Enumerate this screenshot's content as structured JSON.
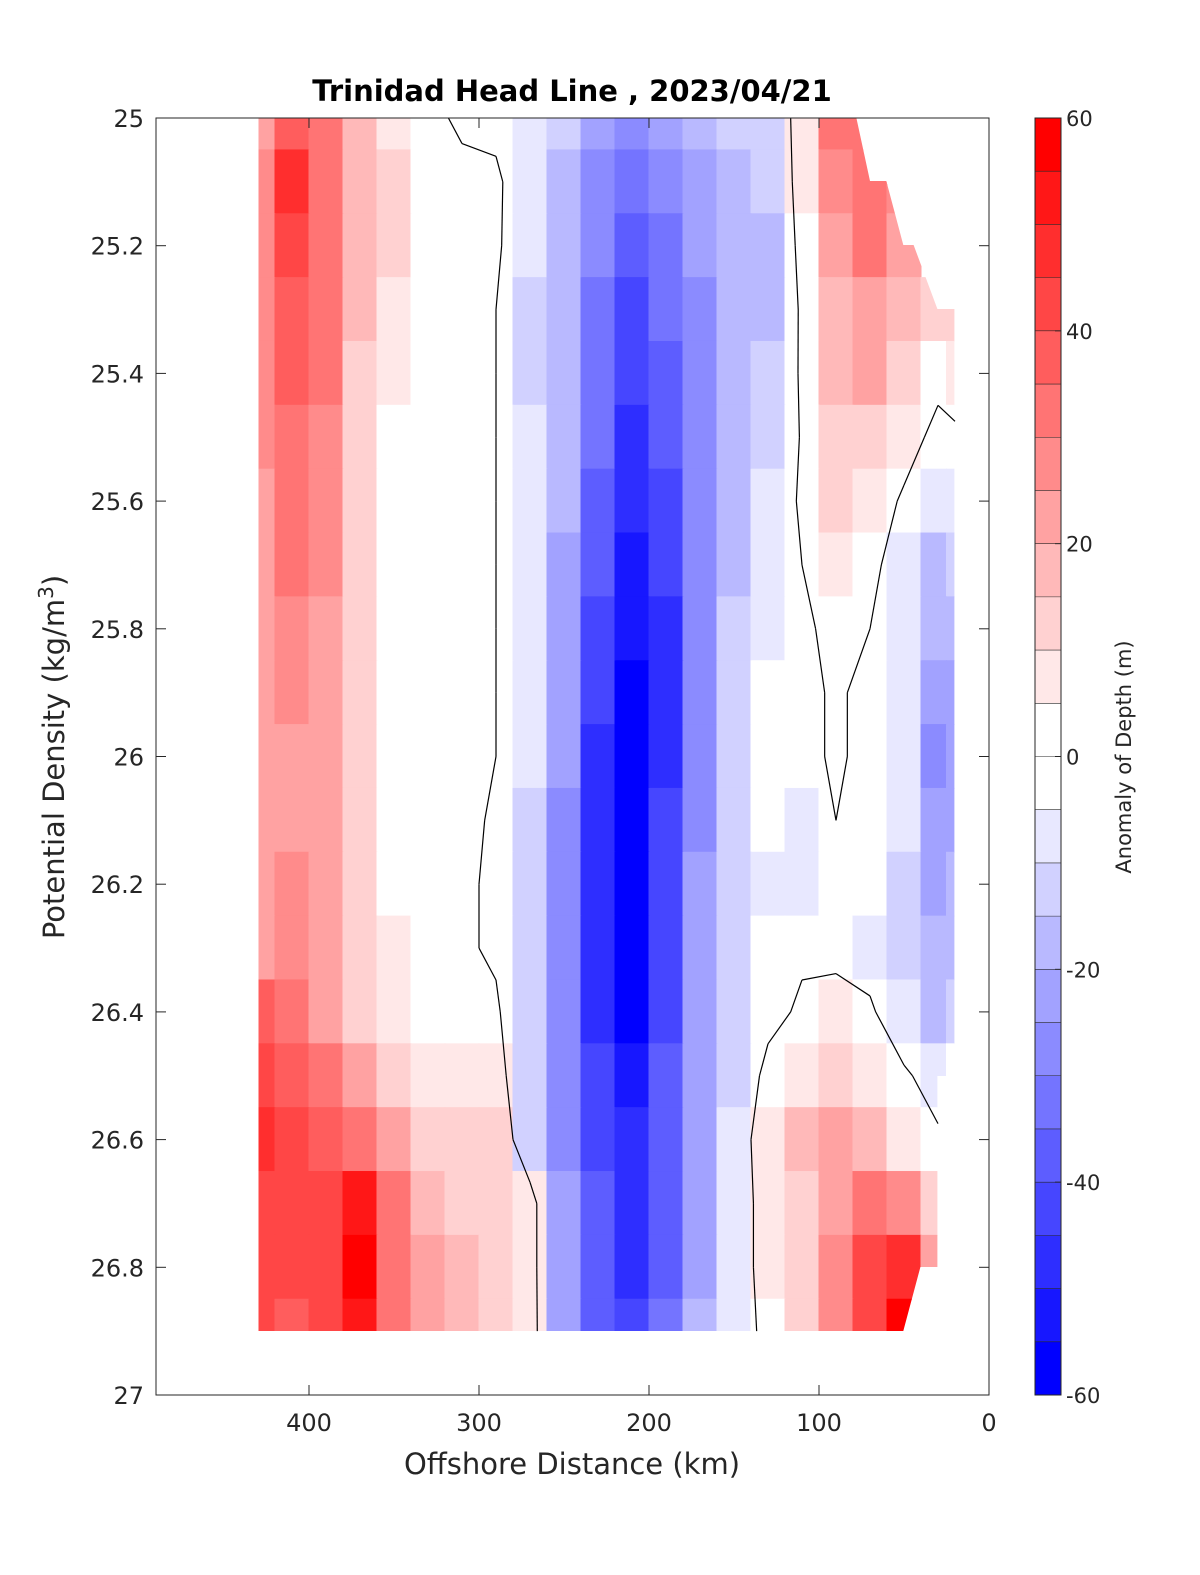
{
  "chart_data": {
    "type": "heatmap",
    "subtype": "filled-contour",
    "title": "Trinidad Head Line , 2023/04/21",
    "xlabel": "Offshore Distance (km)",
    "ylabel_main": "Potential Density (kg/m",
    "ylabel_sup": "3",
    "ylabel_end": ")",
    "xlim": [
      490,
      0
    ],
    "x_reversed": true,
    "ylim": [
      25,
      27
    ],
    "y_reversed": true,
    "xticks": [
      400,
      300,
      200,
      100,
      0
    ],
    "xtick_labels": [
      "400",
      "300",
      "200",
      "100",
      "0"
    ],
    "yticks": [
      25,
      25.2,
      25.4,
      25.6,
      25.8,
      26,
      26.2,
      26.4,
      26.6,
      26.8,
      27
    ],
    "ytick_labels": [
      "25",
      "25.2",
      "25.4",
      "25.6",
      "25.8",
      "26",
      "26.2",
      "26.4",
      "26.6",
      "26.8",
      "27"
    ],
    "grid": false,
    "colorbar": {
      "label": "Anomaly of Depth (m)",
      "range": [
        -60,
        60
      ],
      "ticks": [
        60,
        40,
        20,
        0,
        -20,
        -40,
        -60
      ],
      "tick_labels": [
        "60",
        "40",
        "20",
        "0",
        "-20",
        "-40",
        "-60"
      ],
      "levels": [
        -60,
        -55,
        -50,
        -45,
        -40,
        -35,
        -30,
        -25,
        -20,
        -15,
        -10,
        -5,
        0,
        5,
        10,
        15,
        20,
        25,
        30,
        35,
        40,
        45,
        50,
        55,
        60
      ],
      "min_color": "#0000ff",
      "mid_color": "#ffffff",
      "max_color": "#ff0000"
    },
    "zero_contour_color": "#000000",
    "data_extent": {
      "x": [
        430,
        20
      ],
      "y": [
        25,
        26.9
      ]
    },
    "grid_x": [
      430,
      410,
      390,
      370,
      350,
      330,
      310,
      290,
      270,
      250,
      230,
      210,
      190,
      170,
      150,
      130,
      110,
      90,
      70,
      50,
      30,
      20
    ],
    "grid_y": [
      25.0,
      25.1,
      25.2,
      25.3,
      25.4,
      25.5,
      25.6,
      25.7,
      25.8,
      25.9,
      26.0,
      26.1,
      26.2,
      26.3,
      26.4,
      26.5,
      26.6,
      26.7,
      26.8,
      26.9
    ],
    "anomaly_m": [
      [
        22,
        38,
        30,
        15,
        8,
        3,
        -2,
        -3,
        -8,
        -14,
        -22,
        -28,
        -25,
        -18,
        -14,
        -12,
        6,
        30,
        34,
        null,
        null,
        null
      ],
      [
        28,
        45,
        30,
        15,
        10,
        4,
        3,
        2,
        -8,
        -16,
        -28,
        -35,
        -30,
        -22,
        -18,
        -15,
        6,
        28,
        30,
        28,
        null,
        null
      ],
      [
        28,
        42,
        30,
        16,
        10,
        4,
        3,
        2,
        -10,
        -18,
        -30,
        -40,
        -32,
        -25,
        -18,
        -16,
        4,
        22,
        30,
        22,
        null,
        null
      ],
      [
        28,
        38,
        32,
        16,
        8,
        3,
        3,
        0,
        -12,
        -18,
        -32,
        -42,
        -35,
        -26,
        -20,
        -16,
        2,
        18,
        24,
        18,
        12,
        10
      ],
      [
        26,
        36,
        30,
        14,
        6,
        3,
        2,
        0,
        -12,
        -20,
        -35,
        -44,
        -38,
        -28,
        -20,
        -15,
        2,
        18,
        20,
        12,
        4,
        6
      ],
      [
        26,
        34,
        28,
        12,
        4,
        3,
        2,
        0,
        -10,
        -20,
        -35,
        -46,
        -40,
        -28,
        -18,
        -12,
        1,
        14,
        14,
        6,
        -4,
        -2
      ],
      [
        24,
        32,
        26,
        12,
        4,
        3,
        2,
        0,
        -10,
        -20,
        -38,
        -48,
        -42,
        -30,
        -18,
        -10,
        2,
        10,
        8,
        -2,
        -10,
        -10
      ],
      [
        24,
        30,
        26,
        12,
        4,
        3,
        2,
        0,
        -10,
        -22,
        -40,
        -52,
        -44,
        -30,
        -16,
        -8,
        0,
        6,
        3,
        -6,
        -16,
        -14
      ],
      [
        24,
        28,
        24,
        12,
        4,
        3,
        2,
        0,
        -10,
        -24,
        -42,
        -55,
        -46,
        -30,
        -14,
        -6,
        -2,
        3,
        0,
        -8,
        -20,
        -18
      ],
      [
        24,
        26,
        24,
        12,
        3,
        3,
        2,
        0,
        -10,
        -24,
        -44,
        -58,
        -46,
        -28,
        -12,
        -4,
        -2,
        1,
        -2,
        -10,
        -24,
        -22
      ],
      [
        24,
        24,
        22,
        12,
        3,
        3,
        2,
        0,
        -10,
        -24,
        -46,
        -60,
        -46,
        -28,
        -12,
        -4,
        -2,
        1,
        -2,
        -10,
        -26,
        -24
      ],
      [
        24,
        24,
        20,
        12,
        3,
        3,
        2,
        -1,
        -12,
        -26,
        -46,
        -60,
        -44,
        -26,
        -12,
        -5,
        -8,
        0,
        -2,
        -10,
        -24,
        -24
      ],
      [
        24,
        26,
        20,
        12,
        4,
        3,
        2,
        -2,
        -14,
        -28,
        -46,
        -58,
        -42,
        -24,
        -12,
        -6,
        -8,
        -2,
        -4,
        -12,
        -22,
        -20
      ],
      [
        24,
        28,
        22,
        12,
        6,
        3,
        2,
        -2,
        -14,
        -28,
        -46,
        -58,
        -42,
        -24,
        -12,
        -5,
        -2,
        -4,
        -6,
        -14,
        -20,
        -18
      ],
      [
        36,
        30,
        24,
        14,
        8,
        4,
        2,
        2,
        -14,
        -26,
        -46,
        -56,
        -42,
        -24,
        -12,
        -4,
        2,
        6,
        2,
        -10,
        -16,
        -14
      ],
      [
        40,
        38,
        30,
        22,
        12,
        6,
        6,
        6,
        -14,
        -26,
        -44,
        -54,
        -40,
        -24,
        -12,
        4,
        8,
        10,
        8,
        2,
        -6,
        -4
      ],
      [
        46,
        42,
        36,
        32,
        20,
        12,
        10,
        12,
        -12,
        -26,
        -42,
        -50,
        -40,
        -22,
        -8,
        8,
        16,
        20,
        18,
        8,
        2,
        null
      ],
      [
        42,
        42,
        42,
        50,
        30,
        16,
        14,
        14,
        6,
        -24,
        -40,
        -48,
        -38,
        -22,
        -8,
        6,
        14,
        22,
        30,
        26,
        10,
        null
      ],
      [
        42,
        40,
        44,
        56,
        32,
        20,
        18,
        14,
        6,
        -24,
        -40,
        -46,
        -36,
        -22,
        -8,
        6,
        14,
        26,
        40,
        46,
        20,
        null
      ],
      [
        40,
        38,
        40,
        52,
        30,
        20,
        16,
        14,
        6,
        -22,
        -38,
        -44,
        -34,
        -20,
        -8,
        4,
        12,
        26,
        42,
        56,
        null,
        null
      ]
    ]
  }
}
